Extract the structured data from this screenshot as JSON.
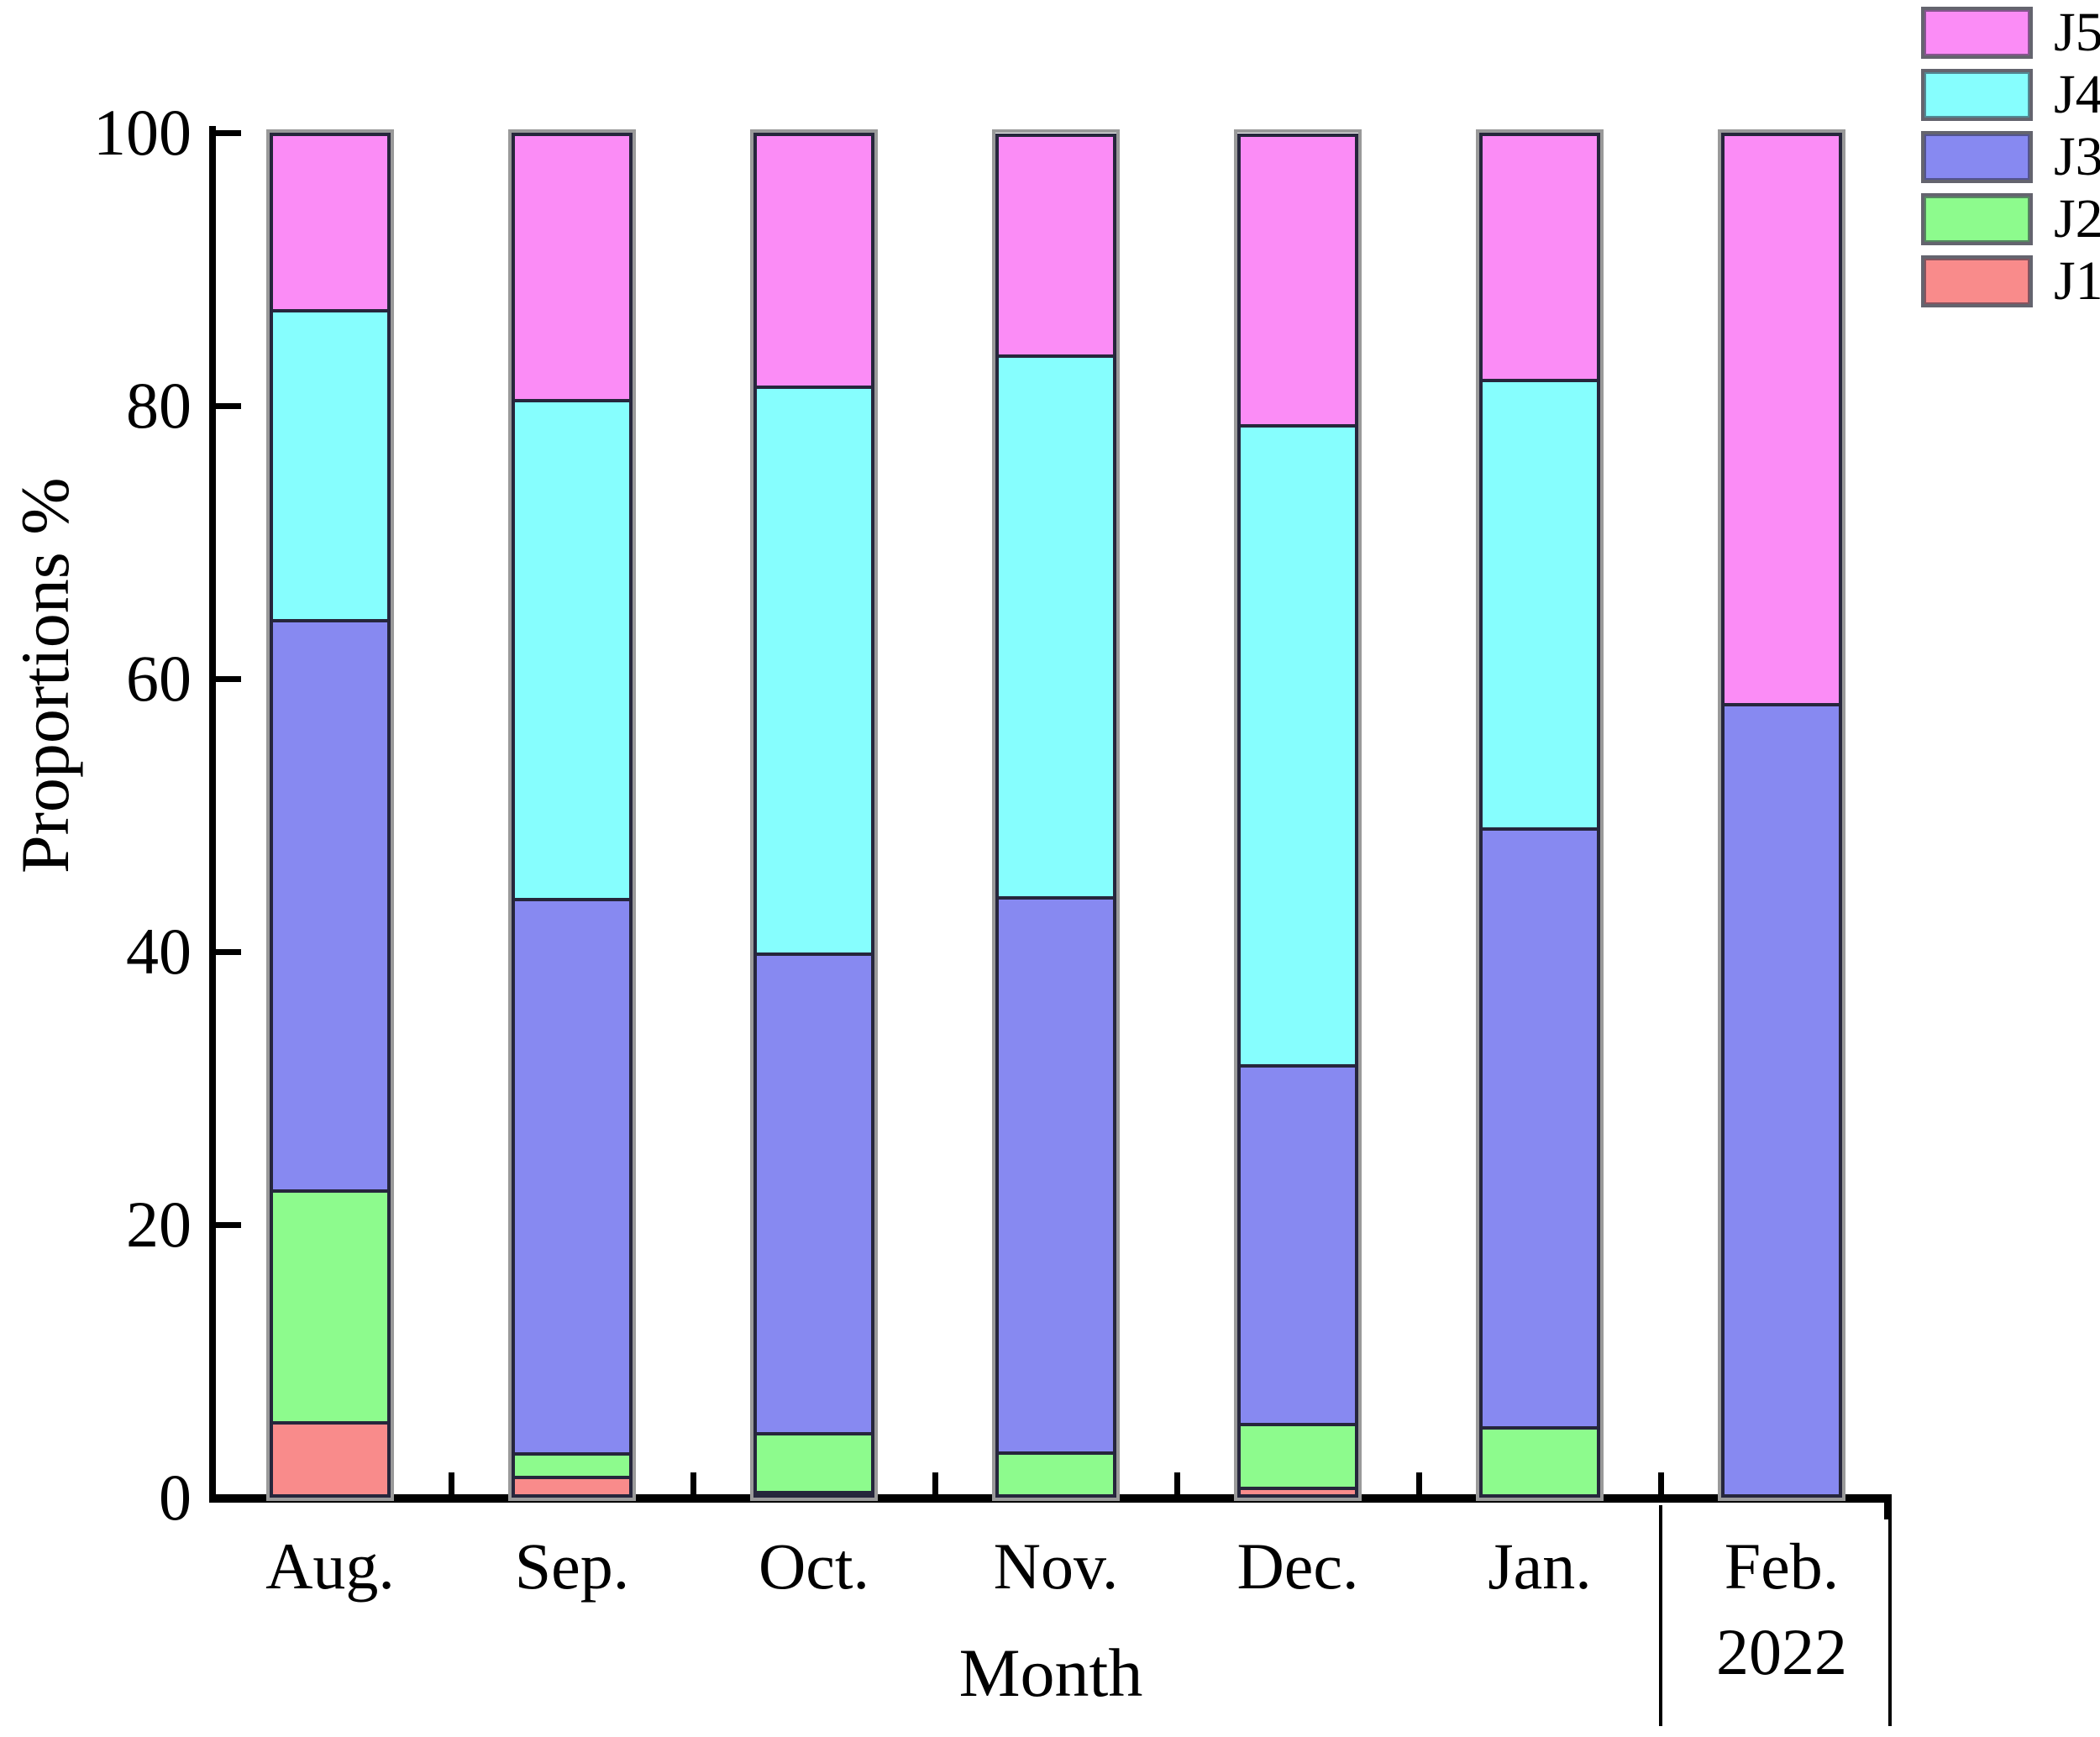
{
  "chart_data": {
    "type": "bar",
    "variant": "stacked-percentage",
    "title": "",
    "xlabel": "Month",
    "ylabel": "Proportions %",
    "ylim": [
      0,
      100
    ],
    "yticks": [
      0,
      20,
      40,
      60,
      80,
      100
    ],
    "grid": "off",
    "categories": [
      "Aug.",
      "Sep.",
      "Oct.",
      "Nov.",
      "Dec.",
      "Jan.",
      "Feb."
    ],
    "year_annotation": {
      "label": "2022",
      "applies_to": "Feb."
    },
    "series": [
      {
        "name": "J1",
        "color": "#F98B8B",
        "values": [
          5.6,
          1.6,
          0.4,
          0,
          0.8,
          0,
          0
        ]
      },
      {
        "name": "J2",
        "color": "#8DFB8D",
        "values": [
          17.0,
          1.7,
          4.3,
          3.4,
          4.7,
          5.2,
          0
        ]
      },
      {
        "name": "J3",
        "color": "#8789F1",
        "values": [
          41.8,
          40.6,
          35.2,
          40.7,
          26.3,
          43.9,
          58.2
        ]
      },
      {
        "name": "J4",
        "color": "#86FEFE",
        "values": [
          22.7,
          36.6,
          41.6,
          39.7,
          46.9,
          32.9,
          0
        ]
      },
      {
        "name": "J5",
        "color": "#FB8CF6",
        "values": [
          12.9,
          19.5,
          18.5,
          16.2,
          21.3,
          18.0,
          41.8
        ]
      }
    ],
    "legend": {
      "position": "top-right",
      "entries": [
        "J5",
        "J4",
        "J3",
        "J2",
        "J1"
      ]
    },
    "axis_color": "#000000",
    "segment_border_color": "#26263c",
    "bar_outline_color": "#9a9a9a"
  }
}
